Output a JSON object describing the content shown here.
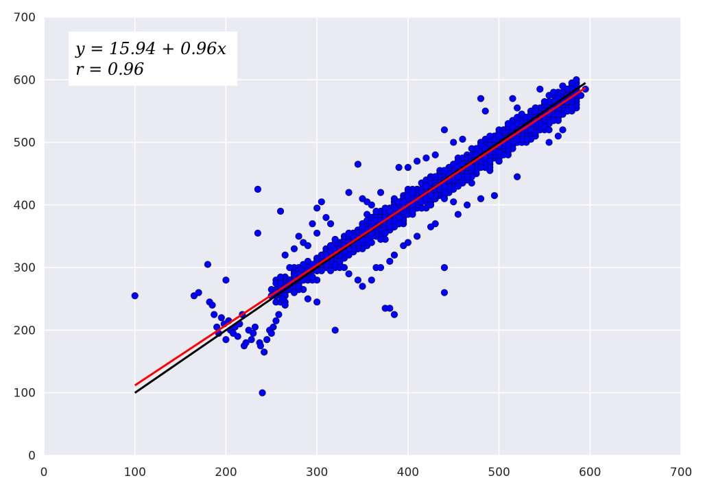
{
  "chart_data": {
    "type": "scatter",
    "title": "",
    "xlabel": "",
    "ylabel": "",
    "xlim": [
      0,
      700
    ],
    "ylim": [
      0,
      700
    ],
    "grid": true,
    "x_ticks": [
      0,
      100,
      200,
      300,
      400,
      500,
      600,
      700
    ],
    "y_ticks": [
      0,
      100,
      200,
      300,
      400,
      500,
      600,
      700
    ],
    "annotation": {
      "lines": [
        "y = 15.94 + 0.96x",
        "r = 0.96"
      ],
      "position": "top-left"
    },
    "colors": {
      "background": "#EAEAF2",
      "grid": "#FFFFFF",
      "points": "#0000FF",
      "fit_line": "#FF0000",
      "identity_line": "#000000"
    },
    "fit_line": {
      "intercept": 15.94,
      "slope": 0.96,
      "x_range": [
        100,
        595
      ]
    },
    "identity_line": {
      "x_range": [
        100,
        595
      ]
    },
    "series": [
      {
        "type": "scatter",
        "points": [
          [
            100,
            255
          ],
          [
            235,
            425
          ],
          [
            235,
            355
          ],
          [
            240,
            100
          ],
          [
            320,
            200
          ],
          [
            440,
            260
          ],
          [
            440,
            300
          ],
          [
            375,
            235
          ],
          [
            380,
            235
          ],
          [
            385,
            225
          ],
          [
            180,
            305
          ],
          [
            200,
            280
          ],
          [
            165,
            255
          ],
          [
            170,
            260
          ],
          [
            182,
            245
          ],
          [
            185,
            240
          ],
          [
            187,
            225
          ],
          [
            190,
            205
          ],
          [
            192,
            195
          ],
          [
            195,
            220
          ],
          [
            198,
            210
          ],
          [
            200,
            185
          ],
          [
            203,
            215
          ],
          [
            205,
            200
          ],
          [
            208,
            195
          ],
          [
            210,
            205
          ],
          [
            213,
            190
          ],
          [
            215,
            210
          ],
          [
            218,
            225
          ],
          [
            220,
            175
          ],
          [
            222,
            180
          ],
          [
            225,
            200
          ],
          [
            228,
            185
          ],
          [
            230,
            195
          ],
          [
            232,
            205
          ],
          [
            237,
            180
          ],
          [
            238,
            175
          ],
          [
            242,
            165
          ],
          [
            245,
            185
          ],
          [
            248,
            200
          ],
          [
            250,
            195
          ],
          [
            252,
            205
          ],
          [
            255,
            215
          ],
          [
            258,
            225
          ],
          [
            260,
            390
          ],
          [
            265,
            320
          ],
          [
            270,
            300
          ],
          [
            275,
            330
          ],
          [
            280,
            350
          ],
          [
            285,
            340
          ],
          [
            290,
            335
          ],
          [
            295,
            370
          ],
          [
            300,
            355
          ],
          [
            300,
            395
          ],
          [
            305,
            405
          ],
          [
            310,
            380
          ],
          [
            315,
            370
          ],
          [
            320,
            345
          ],
          [
            325,
            330
          ],
          [
            330,
            325
          ],
          [
            335,
            420
          ],
          [
            345,
            465
          ],
          [
            350,
            410
          ],
          [
            355,
            405
          ],
          [
            360,
            400
          ],
          [
            365,
            300
          ],
          [
            370,
            420
          ],
          [
            380,
            390
          ],
          [
            390,
            460
          ],
          [
            400,
            460
          ],
          [
            410,
            470
          ],
          [
            420,
            475
          ],
          [
            430,
            480
          ],
          [
            440,
            520
          ],
          [
            450,
            500
          ],
          [
            460,
            505
          ],
          [
            470,
            490
          ],
          [
            480,
            570
          ],
          [
            485,
            550
          ],
          [
            490,
            510
          ],
          [
            500,
            470
          ],
          [
            510,
            530
          ],
          [
            515,
            570
          ],
          [
            520,
            555
          ],
          [
            525,
            545
          ],
          [
            530,
            540
          ],
          [
            535,
            535
          ],
          [
            540,
            550
          ],
          [
            545,
            585
          ],
          [
            550,
            565
          ],
          [
            555,
            575
          ],
          [
            560,
            580
          ],
          [
            565,
            560
          ],
          [
            570,
            590
          ],
          [
            575,
            585
          ],
          [
            580,
            595
          ],
          [
            585,
            580
          ],
          [
            590,
            575
          ],
          [
            595,
            585
          ],
          [
            495,
            415
          ],
          [
            520,
            445
          ],
          [
            565,
            510
          ],
          [
            570,
            520
          ],
          [
            555,
            500
          ],
          [
            480,
            410
          ],
          [
            465,
            400
          ],
          [
            450,
            405
          ],
          [
            455,
            385
          ],
          [
            430,
            370
          ],
          [
            425,
            365
          ],
          [
            410,
            350
          ],
          [
            400,
            340
          ],
          [
            395,
            335
          ],
          [
            385,
            320
          ],
          [
            380,
            310
          ],
          [
            370,
            300
          ],
          [
            360,
            280
          ],
          [
            350,
            270
          ],
          [
            345,
            280
          ],
          [
            335,
            290
          ],
          [
            330,
            300
          ],
          [
            325,
            310
          ],
          [
            310,
            305
          ],
          [
            300,
            295
          ],
          [
            295,
            285
          ],
          [
            285,
            280
          ],
          [
            280,
            270
          ],
          [
            275,
            260
          ],
          [
            265,
            255
          ],
          [
            262,
            250
          ],
          [
            300,
            245
          ],
          [
            290,
            250
          ],
          [
            320,
            320
          ],
          [
            315,
            295
          ]
        ]
      }
    ]
  }
}
